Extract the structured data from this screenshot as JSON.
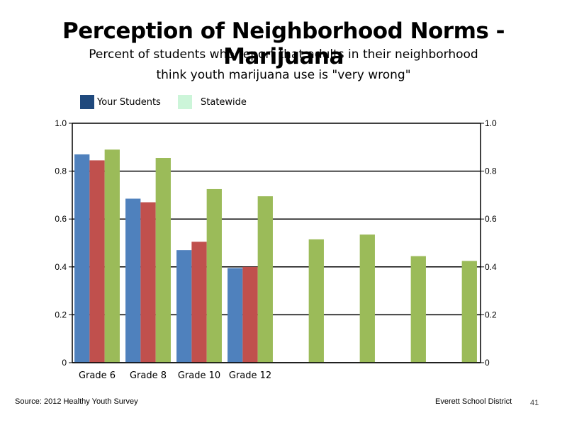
{
  "slide": {
    "title": "Perception of Neighborhood Norms - Marijuana",
    "subtitle_line1": "Percent of students who report that adults in their neighborhood",
    "subtitle_line2": "think youth marijuana use is \"very wrong\"",
    "footer_source": "Source: 2012 Healthy Youth Survey",
    "footer_org": "Everett School District",
    "page_number": "41"
  },
  "legend": [
    {
      "label": "Your Students",
      "color": "#1F497D"
    },
    {
      "label": "Statewide",
      "color": "#CCF5D9"
    }
  ],
  "chart_data": {
    "type": "bar",
    "categories": [
      "Grade 6",
      "Grade 8",
      "Grade 10",
      "Grade 12",
      "",
      "",
      "",
      ""
    ],
    "series": [
      {
        "color": "#4F81BD",
        "values": [
          0.87,
          0.685,
          0.47,
          0.395,
          null,
          null,
          null,
          null
        ]
      },
      {
        "color": "#C0504D",
        "values": [
          0.845,
          0.67,
          0.505,
          0.4,
          null,
          null,
          null,
          null
        ]
      },
      {
        "color": "#9BBB59",
        "values": [
          0.89,
          0.855,
          0.725,
          0.695,
          0.515,
          0.535,
          0.445,
          0.425
        ]
      }
    ],
    "ylim": [
      0,
      1.0
    ],
    "y_ticks": [
      "0",
      "0.2",
      "0.4",
      "0.6",
      "0.8",
      "1.0"
    ],
    "y2_ticks": [
      "0",
      "0.2",
      "0.4",
      "0.6",
      "0.8",
      "1.0"
    ],
    "grid": true,
    "legend_position": "top-left"
  }
}
